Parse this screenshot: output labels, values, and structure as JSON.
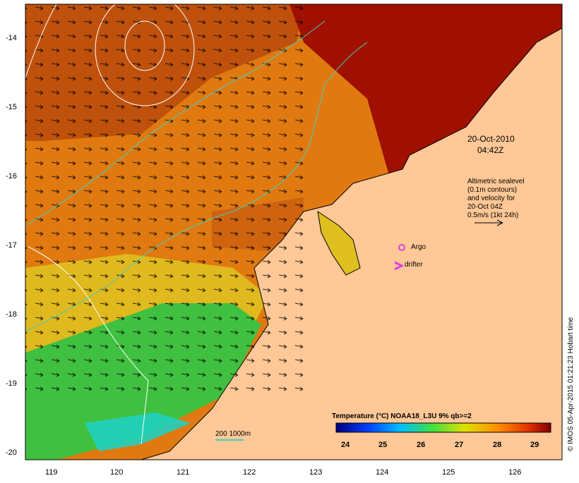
{
  "map": {
    "x_ticks": [
      "119",
      "120",
      "121",
      "122",
      "123",
      "124",
      "125",
      "126"
    ],
    "y_ticks": [
      "-14",
      "-15",
      "-16",
      "-17",
      "-18",
      "-19",
      "-20"
    ],
    "date_label": "20-Oct-2010",
    "time_label": "04:42Z",
    "legend_lines": [
      "Altimetric sealevel",
      "(0.1m contours)",
      "and velocity for",
      "20-Oct 04Z",
      "0.5m/s (1kt 24h)"
    ],
    "argo_label": "Argo",
    "drifter_label": "drifter",
    "depth_label": "200  1000m",
    "colorbar_title": "Temperature (°C) NOAA18_L3U 9% qb>=2",
    "colorbar_ticks": [
      "24",
      "25",
      "26",
      "27",
      "28",
      "29"
    ],
    "credit": "© IMOS 05-Apr-2015 01:21:23 Hobart time",
    "colors": {
      "land": "#ffc896",
      "warm_sst": "#a01000",
      "mid_sst": "#e07a10",
      "cool_sst": "#40c040",
      "argo_marker": "#e040e0",
      "bathy_line": "#40d0c0"
    }
  }
}
